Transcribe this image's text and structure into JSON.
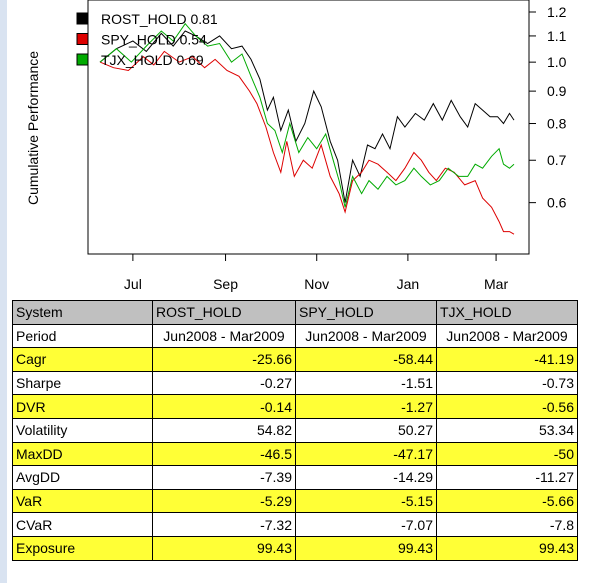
{
  "chart_data": {
    "type": "line",
    "ylabel": "Cumulative Performance",
    "x_tick_labels": [
      "Jul",
      "Sep",
      "Nov",
      "Jan",
      "Mar"
    ],
    "x_tick_dates": [
      "2008-07-01",
      "2008-09-01",
      "2008-11-01",
      "2009-01-01",
      "2009-03-01"
    ],
    "xlim": [
      "2008-06-09",
      "2009-03-15"
    ],
    "y_scale": "log",
    "y_ticks": [
      0.6,
      0.7,
      0.8,
      0.9,
      1.0,
      1.1,
      1.2
    ],
    "ylim": [
      0.52,
      1.2
    ],
    "grid": false,
    "legend_position": "top-left",
    "series": [
      {
        "name": "ROST_HOLD 0.81",
        "color": "#000000",
        "points": [
          [
            "2008-06-09",
            1.0
          ],
          [
            "2008-06-20",
            1.05
          ],
          [
            "2008-07-01",
            1.08
          ],
          [
            "2008-07-10",
            1.04
          ],
          [
            "2008-07-20",
            1.11
          ],
          [
            "2008-07-28",
            1.06
          ],
          [
            "2008-08-05",
            1.12
          ],
          [
            "2008-08-12",
            1.1
          ],
          [
            "2008-08-20",
            1.07
          ],
          [
            "2008-08-28",
            1.1
          ],
          [
            "2008-09-05",
            1.05
          ],
          [
            "2008-09-12",
            1.06
          ],
          [
            "2008-09-18",
            1.01
          ],
          [
            "2008-09-24",
            0.94
          ],
          [
            "2008-09-29",
            0.84
          ],
          [
            "2008-10-03",
            0.88
          ],
          [
            "2008-10-08",
            0.78
          ],
          [
            "2008-10-13",
            0.84
          ],
          [
            "2008-10-18",
            0.75
          ],
          [
            "2008-10-24",
            0.8
          ],
          [
            "2008-10-30",
            0.9
          ],
          [
            "2008-11-04",
            0.85
          ],
          [
            "2008-11-10",
            0.75
          ],
          [
            "2008-11-15",
            0.7
          ],
          [
            "2008-11-20",
            0.6
          ],
          [
            "2008-11-25",
            0.7
          ],
          [
            "2008-11-30",
            0.66
          ],
          [
            "2008-12-05",
            0.74
          ],
          [
            "2008-12-10",
            0.73
          ],
          [
            "2008-12-15",
            0.77
          ],
          [
            "2008-12-20",
            0.73
          ],
          [
            "2008-12-25",
            0.82
          ],
          [
            "2008-12-30",
            0.79
          ],
          [
            "2009-01-06",
            0.83
          ],
          [
            "2009-01-12",
            0.81
          ],
          [
            "2009-01-18",
            0.86
          ],
          [
            "2009-01-24",
            0.81
          ],
          [
            "2009-01-30",
            0.87
          ],
          [
            "2009-02-05",
            0.82
          ],
          [
            "2009-02-10",
            0.79
          ],
          [
            "2009-02-15",
            0.86
          ],
          [
            "2009-02-20",
            0.84
          ],
          [
            "2009-02-25",
            0.82
          ],
          [
            "2009-03-02",
            0.82
          ],
          [
            "2009-03-06",
            0.8
          ],
          [
            "2009-03-10",
            0.83
          ],
          [
            "2009-03-13",
            0.81
          ]
        ]
      },
      {
        "name": "SPY_HOLD 0.54",
        "color": "#dd0000",
        "points": [
          [
            "2008-06-09",
            1.0
          ],
          [
            "2008-06-18",
            0.98
          ],
          [
            "2008-06-28",
            0.97
          ],
          [
            "2008-07-08",
            1.02
          ],
          [
            "2008-07-15",
            0.99
          ],
          [
            "2008-07-22",
            1.04
          ],
          [
            "2008-08-01",
            1.0
          ],
          [
            "2008-08-10",
            1.02
          ],
          [
            "2008-08-18",
            0.98
          ],
          [
            "2008-08-25",
            1.01
          ],
          [
            "2008-09-02",
            0.97
          ],
          [
            "2008-09-10",
            0.95
          ],
          [
            "2008-09-17",
            0.9
          ],
          [
            "2008-09-22",
            0.86
          ],
          [
            "2008-09-28",
            0.79
          ],
          [
            "2008-10-03",
            0.72
          ],
          [
            "2008-10-08",
            0.67
          ],
          [
            "2008-10-12",
            0.75
          ],
          [
            "2008-10-17",
            0.66
          ],
          [
            "2008-10-23",
            0.7
          ],
          [
            "2008-10-29",
            0.68
          ],
          [
            "2008-11-04",
            0.74
          ],
          [
            "2008-11-10",
            0.66
          ],
          [
            "2008-11-16",
            0.62
          ],
          [
            "2008-11-20",
            0.58
          ],
          [
            "2008-11-25",
            0.65
          ],
          [
            "2008-12-01",
            0.67
          ],
          [
            "2008-12-06",
            0.7
          ],
          [
            "2008-12-12",
            0.69
          ],
          [
            "2008-12-18",
            0.67
          ],
          [
            "2008-12-24",
            0.65
          ],
          [
            "2008-12-30",
            0.68
          ],
          [
            "2009-01-05",
            0.72
          ],
          [
            "2009-01-10",
            0.7
          ],
          [
            "2009-01-15",
            0.67
          ],
          [
            "2009-01-20",
            0.65
          ],
          [
            "2009-01-26",
            0.68
          ],
          [
            "2009-02-01",
            0.67
          ],
          [
            "2009-02-08",
            0.64
          ],
          [
            "2009-02-15",
            0.65
          ],
          [
            "2009-02-20",
            0.61
          ],
          [
            "2009-02-26",
            0.59
          ],
          [
            "2009-03-03",
            0.56
          ],
          [
            "2009-03-06",
            0.54
          ],
          [
            "2009-03-10",
            0.54
          ],
          [
            "2009-03-13",
            0.535
          ]
        ]
      },
      {
        "name": "TJX_HOLD 0.69",
        "color": "#00aa00",
        "points": [
          [
            "2008-06-09",
            1.0
          ],
          [
            "2008-06-20",
            1.05
          ],
          [
            "2008-06-30",
            1.0
          ],
          [
            "2008-07-10",
            1.06
          ],
          [
            "2008-07-20",
            1.12
          ],
          [
            "2008-07-28",
            1.08
          ],
          [
            "2008-08-05",
            1.15
          ],
          [
            "2008-08-12",
            1.1
          ],
          [
            "2008-08-20",
            1.06
          ],
          [
            "2008-08-28",
            1.07
          ],
          [
            "2008-09-05",
            1.0
          ],
          [
            "2008-09-12",
            1.03
          ],
          [
            "2008-09-18",
            0.95
          ],
          [
            "2008-09-24",
            0.88
          ],
          [
            "2008-09-29",
            0.8
          ],
          [
            "2008-10-04",
            0.78
          ],
          [
            "2008-10-09",
            0.72
          ],
          [
            "2008-10-14",
            0.8
          ],
          [
            "2008-10-20",
            0.72
          ],
          [
            "2008-10-26",
            0.76
          ],
          [
            "2008-11-01",
            0.73
          ],
          [
            "2008-11-07",
            0.77
          ],
          [
            "2008-11-12",
            0.7
          ],
          [
            "2008-11-16",
            0.65
          ],
          [
            "2008-11-20",
            0.59
          ],
          [
            "2008-11-25",
            0.66
          ],
          [
            "2008-12-01",
            0.62
          ],
          [
            "2008-12-06",
            0.65
          ],
          [
            "2008-12-12",
            0.63
          ],
          [
            "2008-12-18",
            0.66
          ],
          [
            "2008-12-24",
            0.64
          ],
          [
            "2008-12-30",
            0.65
          ],
          [
            "2009-01-05",
            0.68
          ],
          [
            "2009-01-10",
            0.66
          ],
          [
            "2009-01-16",
            0.64
          ],
          [
            "2009-01-22",
            0.65
          ],
          [
            "2009-01-28",
            0.68
          ],
          [
            "2009-02-04",
            0.66
          ],
          [
            "2009-02-10",
            0.66
          ],
          [
            "2009-02-15",
            0.69
          ],
          [
            "2009-02-20",
            0.68
          ],
          [
            "2009-02-26",
            0.71
          ],
          [
            "2009-03-03",
            0.73
          ],
          [
            "2009-03-06",
            0.69
          ],
          [
            "2009-03-10",
            0.68
          ],
          [
            "2009-03-13",
            0.69
          ]
        ]
      }
    ]
  },
  "table": {
    "headers": [
      "System",
      "ROST_HOLD",
      "SPY_HOLD",
      "TJX_HOLD"
    ],
    "rows": [
      {
        "label": "Period",
        "values": [
          "Jun2008 - Mar2009",
          "Jun2008 - Mar2009",
          "Jun2008 - Mar2009"
        ],
        "highlight": false
      },
      {
        "label": "Cagr",
        "values": [
          "-25.66",
          "-58.44",
          "-41.19"
        ],
        "highlight": true
      },
      {
        "label": "Sharpe",
        "values": [
          "-0.27",
          "-1.51",
          "-0.73"
        ],
        "highlight": false
      },
      {
        "label": "DVR",
        "values": [
          "-0.14",
          "-1.27",
          "-0.56"
        ],
        "highlight": true
      },
      {
        "label": "Volatility",
        "values": [
          "54.82",
          "50.27",
          "53.34"
        ],
        "highlight": false
      },
      {
        "label": "MaxDD",
        "values": [
          "-46.5",
          "-47.17",
          "-50"
        ],
        "highlight": true
      },
      {
        "label": "AvgDD",
        "values": [
          "-7.39",
          "-14.29",
          "-11.27"
        ],
        "highlight": false
      },
      {
        "label": "VaR",
        "values": [
          "-5.29",
          "-5.15",
          "-5.66"
        ],
        "highlight": true
      },
      {
        "label": "CVaR",
        "values": [
          "-7.32",
          "-7.07",
          "-7.8"
        ],
        "highlight": false
      },
      {
        "label": "Exposure",
        "values": [
          "99.43",
          "99.43",
          "99.43"
        ],
        "highlight": true
      }
    ],
    "highlight_color": "#ffff36",
    "header_color": "#c0c0c0"
  }
}
